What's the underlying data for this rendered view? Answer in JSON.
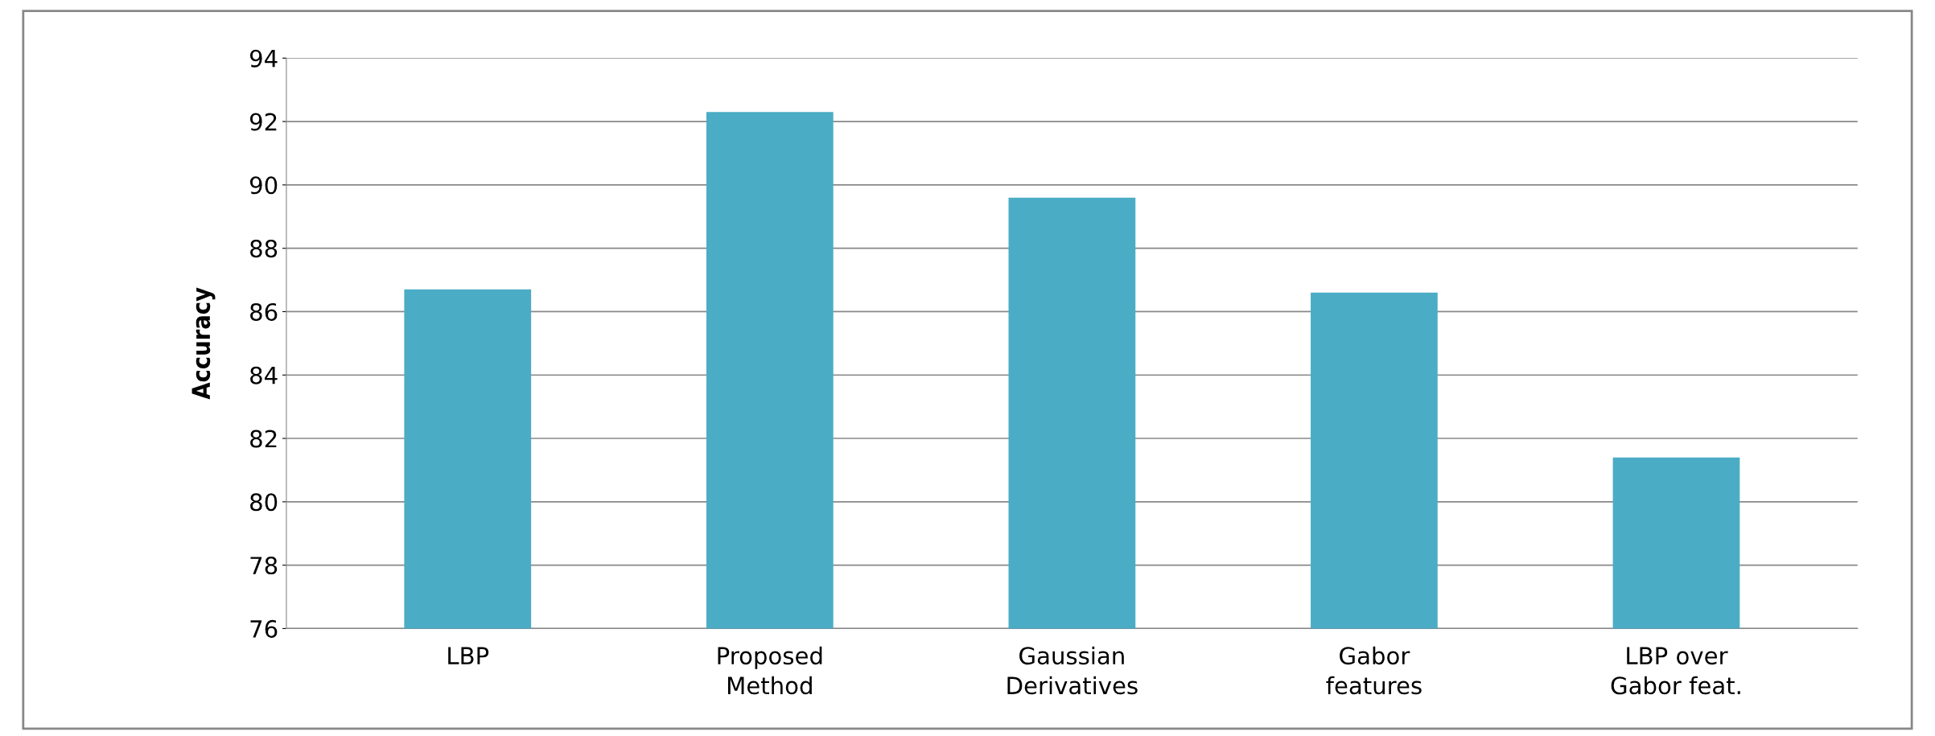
{
  "chart_data": {
    "type": "bar",
    "ylabel": "Accuracy",
    "categories": [
      "LBP",
      "Proposed\nMethod",
      "Gaussian\nDerivatives",
      "Gabor\nfeatures",
      "LBP over\nGabor feat."
    ],
    "values": [
      86.7,
      92.3,
      89.6,
      86.6,
      81.4
    ],
    "color": "#4bacc6",
    "ylim": [
      76,
      94
    ],
    "yticks": [
      76,
      78,
      80,
      82,
      84,
      86,
      88,
      90,
      92,
      94
    ],
    "grid": "y"
  }
}
